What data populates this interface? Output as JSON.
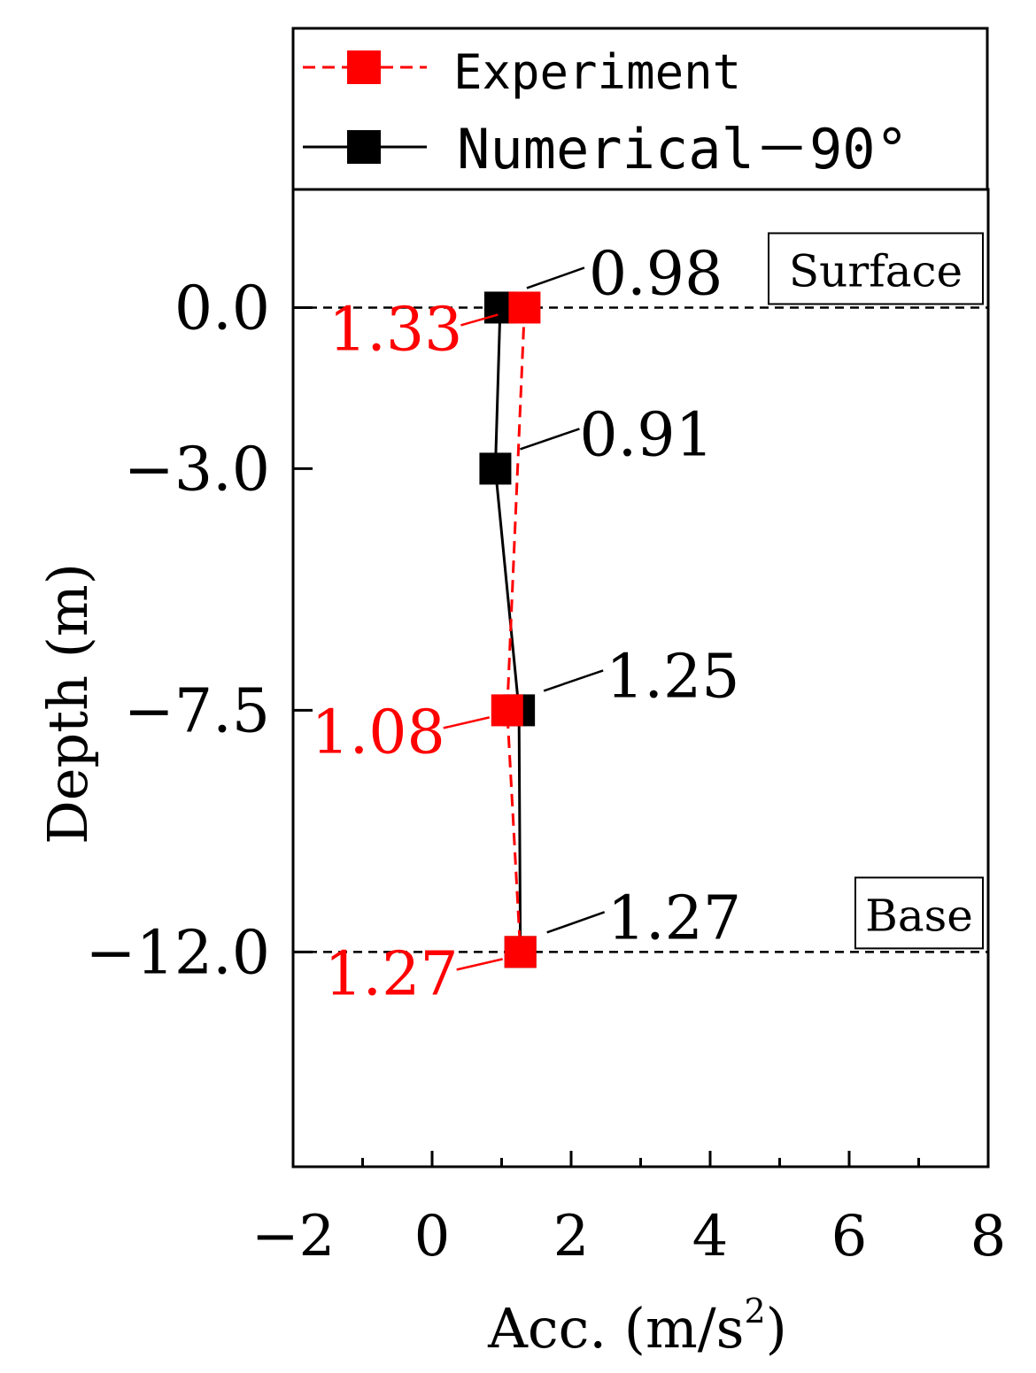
{
  "chart_data": {
    "type": "line",
    "xlabel": "Acc.  (m/s",
    "xlabel_sup": "2",
    "xlabel_end": ")",
    "ylabel": "Depth  (m)",
    "xlim": [
      -2,
      8
    ],
    "ylim": [
      -16,
      2.2
    ],
    "x_ticks": [
      -2,
      0,
      2,
      4,
      6,
      8
    ],
    "x_tick_labels": [
      "−2",
      "0",
      "2",
      "4",
      "6",
      "8"
    ],
    "x_minor_ticks": [
      -1,
      1,
      3,
      5,
      7
    ],
    "y_ticks": [
      0,
      -3,
      -7.5,
      -12
    ],
    "y_tick_labels": [
      "0.0",
      "−3.0",
      "−7.5",
      "−12.0"
    ],
    "grid": false,
    "legend_position": "top",
    "reference_lines": [
      {
        "y": 0,
        "label": "Surface"
      },
      {
        "y": -12,
        "label": "Base"
      }
    ],
    "series": [
      {
        "name": "Experiment",
        "color": "#ff0000",
        "line_style": "dashed",
        "points": [
          {
            "x": 1.33,
            "y": 0,
            "label": "1.33"
          },
          {
            "x": 1.08,
            "y": -7.5,
            "label": "1.08"
          },
          {
            "x": 1.27,
            "y": -12,
            "label": "1.27"
          }
        ]
      },
      {
        "name": "Numerical－90°",
        "color": "#000000",
        "line_style": "solid",
        "points": [
          {
            "x": 0.98,
            "y": 0,
            "label": "0.98"
          },
          {
            "x": 0.91,
            "y": -3,
            "label": "0.91"
          },
          {
            "x": 1.25,
            "y": -7.5,
            "label": "1.25"
          },
          {
            "x": 1.27,
            "y": -12,
            "label": "1.27"
          }
        ]
      }
    ]
  }
}
